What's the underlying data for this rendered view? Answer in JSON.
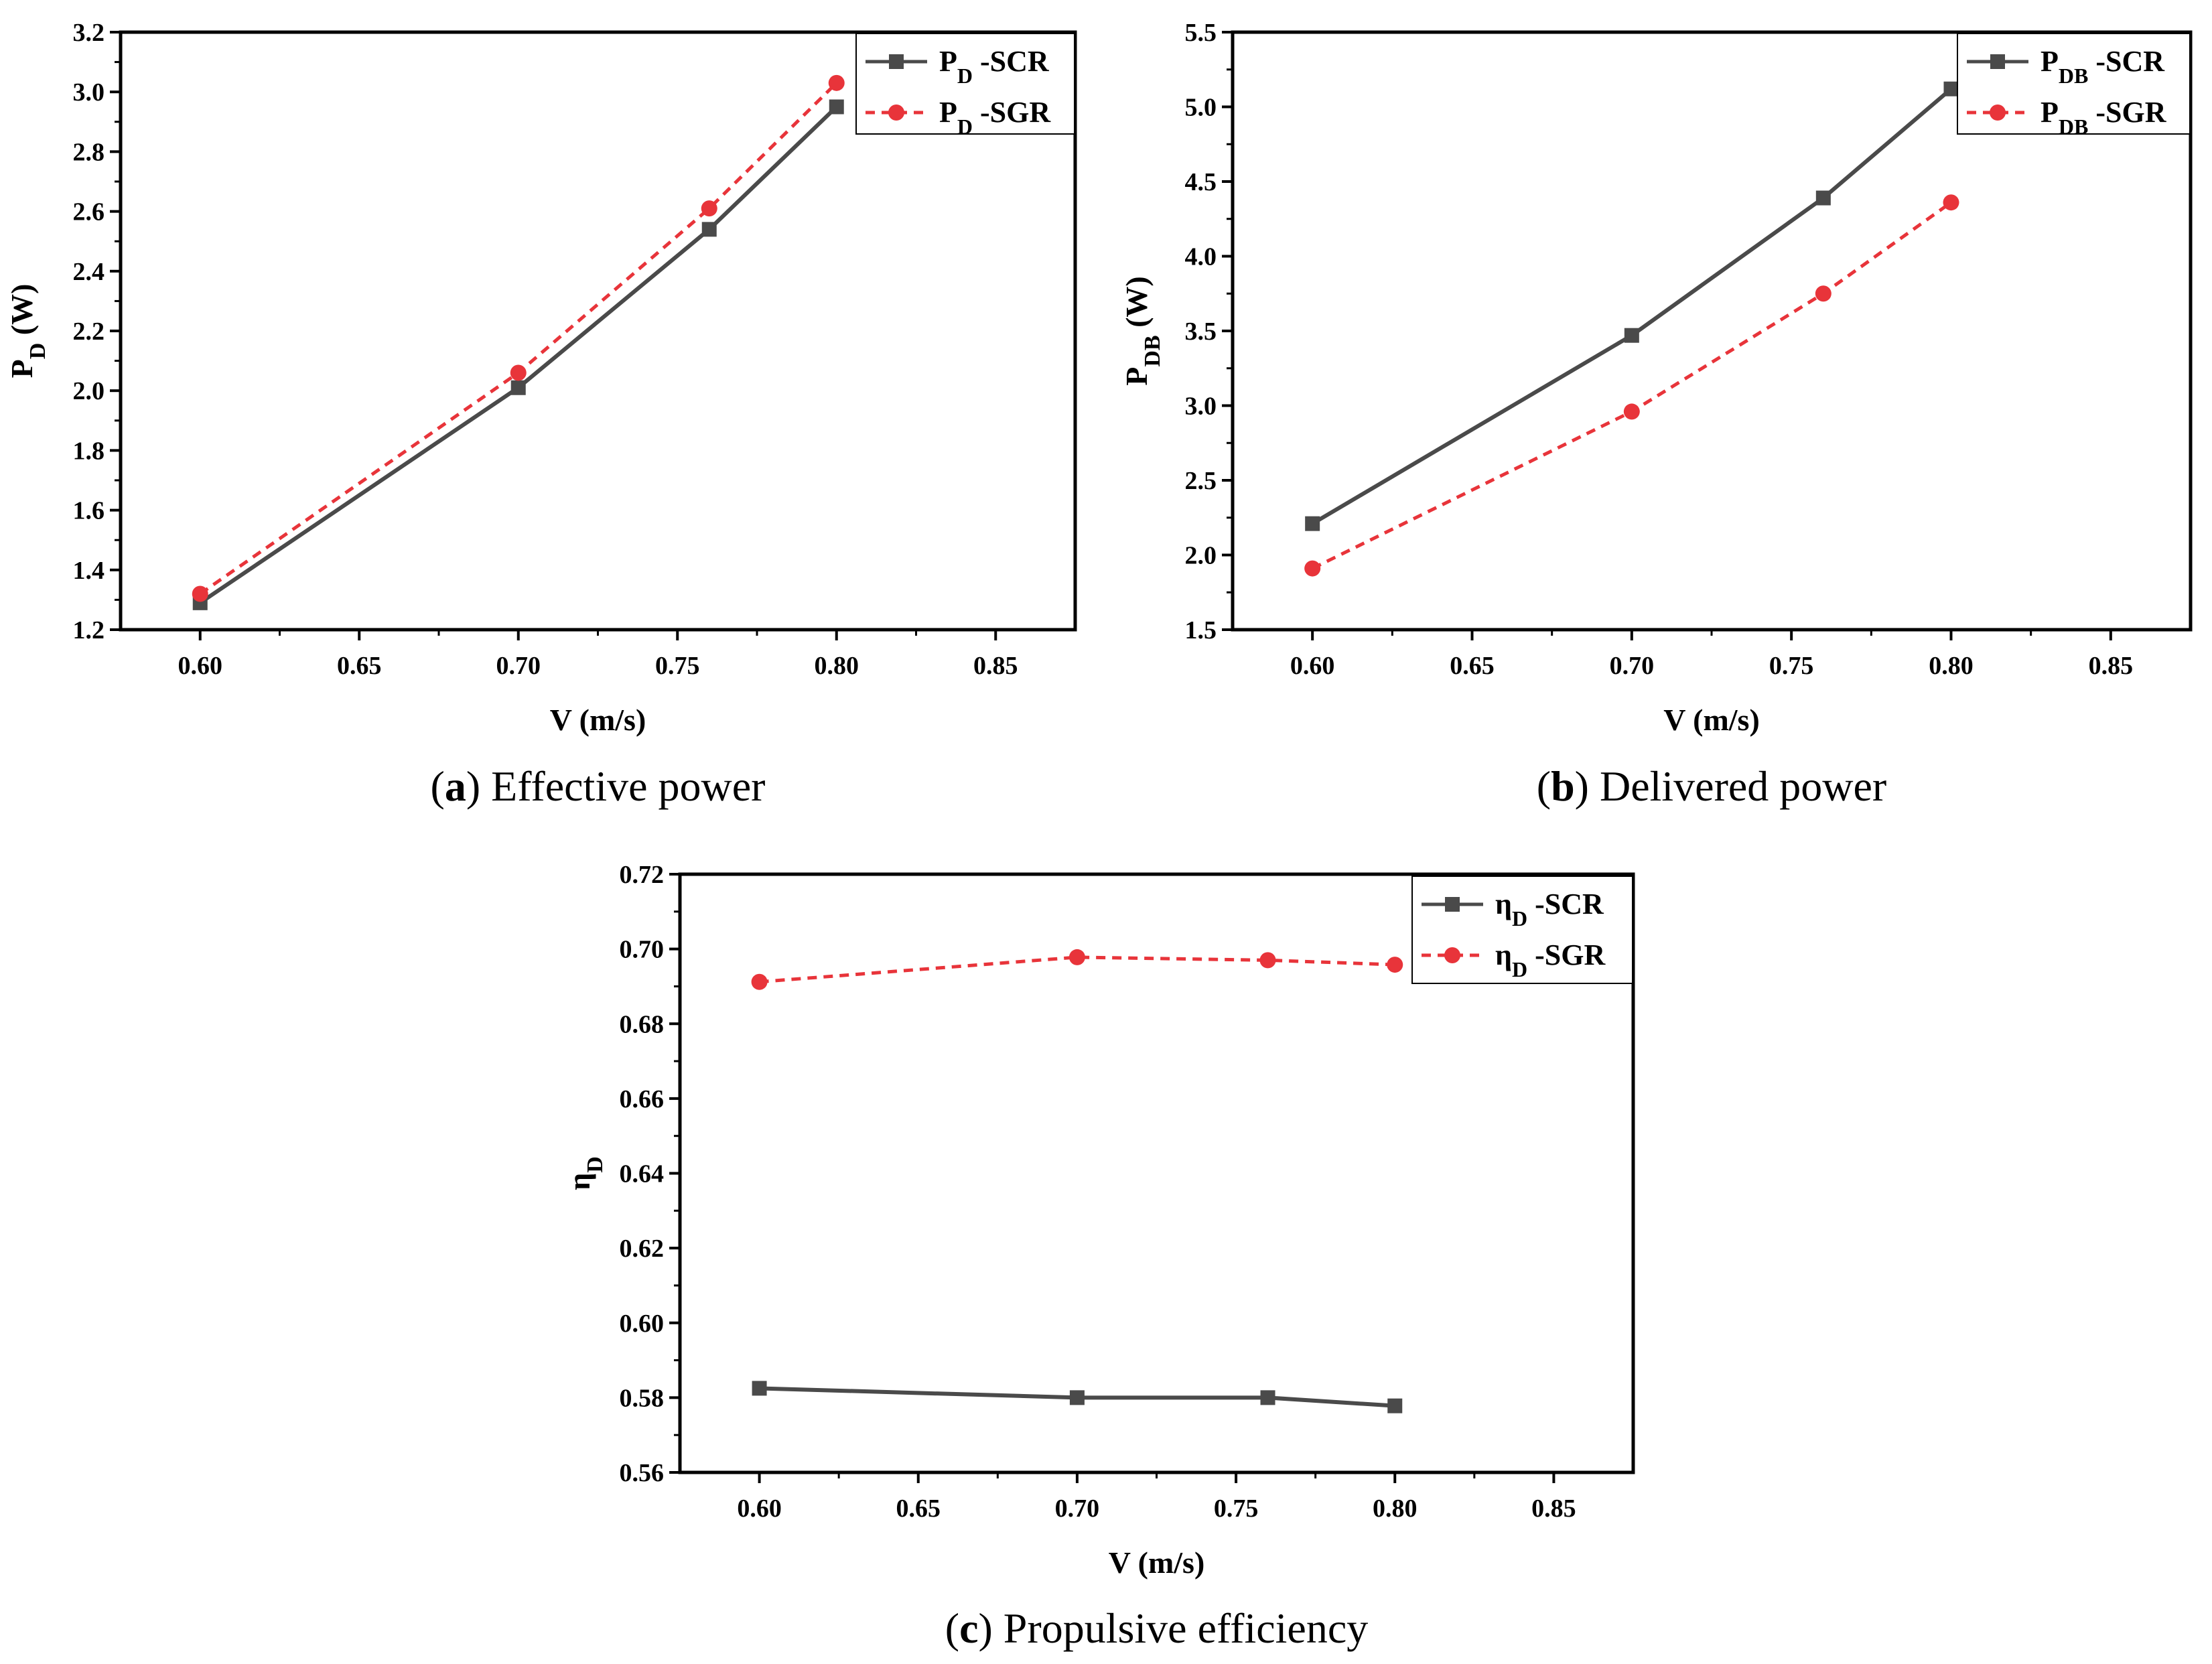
{
  "colors": {
    "scr": "#4a4a4a",
    "sgr": "#e8343a",
    "axis": "#000000",
    "background": "#ffffff"
  },
  "chart_data": [
    {
      "id": "a",
      "type": "line",
      "caption_letter": "a",
      "caption_text": "Effective power",
      "xlabel": "V (m/s)",
      "ylabel": {
        "main": "P",
        "sub": "D",
        "unit": "(W)"
      },
      "xlim": [
        0.575,
        0.875
      ],
      "ylim": [
        1.2,
        3.2
      ],
      "xticks": [
        "0.60",
        "0.65",
        "0.70",
        "0.75",
        "0.80",
        "0.85"
      ],
      "yticks": [
        "1.2",
        "1.4",
        "1.6",
        "1.8",
        "2.0",
        "2.2",
        "2.4",
        "2.6",
        "2.8",
        "3.0",
        "3.2"
      ],
      "x": [
        0.6,
        0.7,
        0.76,
        0.8
      ],
      "series": [
        {
          "name": "SCR",
          "legend_main": "P",
          "legend_sub": "D",
          "legend_suffix": " -SCR",
          "values": [
            1.29,
            2.01,
            2.54,
            2.95
          ]
        },
        {
          "name": "SGR",
          "legend_main": "P",
          "legend_sub": "D",
          "legend_suffix": " -SGR",
          "values": [
            1.32,
            2.06,
            2.61,
            3.03
          ]
        }
      ]
    },
    {
      "id": "b",
      "type": "line",
      "caption_letter": "b",
      "caption_text": "Delivered power",
      "xlabel": "V (m/s)",
      "ylabel": {
        "main": "P",
        "sub": "DB",
        "unit": "(W)"
      },
      "xlim": [
        0.575,
        0.875
      ],
      "ylim": [
        1.5,
        5.5
      ],
      "xticks": [
        "0.60",
        "0.65",
        "0.70",
        "0.75",
        "0.80",
        "0.85"
      ],
      "yticks": [
        "1.5",
        "2.0",
        "2.5",
        "3.0",
        "3.5",
        "4.0",
        "4.5",
        "5.0",
        "5.5"
      ],
      "x": [
        0.6,
        0.7,
        0.76,
        0.8
      ],
      "series": [
        {
          "name": "SCR",
          "legend_main": "P",
          "legend_sub": "DB",
          "legend_suffix": " -SCR",
          "values": [
            2.21,
            3.47,
            4.39,
            5.12
          ]
        },
        {
          "name": "SGR",
          "legend_main": "P",
          "legend_sub": "DB",
          "legend_suffix": " -SGR",
          "values": [
            1.91,
            2.96,
            3.75,
            4.36
          ]
        }
      ]
    },
    {
      "id": "c",
      "type": "line",
      "caption_letter": "c",
      "caption_text": "Propulsive efficiency",
      "xlabel": "V (m/s)",
      "ylabel": {
        "main": "η",
        "sub": "D",
        "unit": ""
      },
      "xlim": [
        0.575,
        0.875
      ],
      "ylim": [
        0.56,
        0.72
      ],
      "xticks": [
        "0.60",
        "0.65",
        "0.70",
        "0.75",
        "0.80",
        "0.85"
      ],
      "yticks": [
        "0.56",
        "0.58",
        "0.60",
        "0.62",
        "0.64",
        "0.66",
        "0.68",
        "0.70",
        "0.72"
      ],
      "x": [
        0.6,
        0.7,
        0.76,
        0.8
      ],
      "series": [
        {
          "name": "SCR",
          "legend_main": "η",
          "legend_sub": "D",
          "legend_suffix": " -SCR",
          "values": [
            0.5825,
            0.58,
            0.58,
            0.5778
          ]
        },
        {
          "name": "SGR",
          "legend_main": "η",
          "legend_sub": "D",
          "legend_suffix": " -SGR",
          "values": [
            0.6912,
            0.6978,
            0.697,
            0.6958
          ]
        }
      ]
    }
  ]
}
